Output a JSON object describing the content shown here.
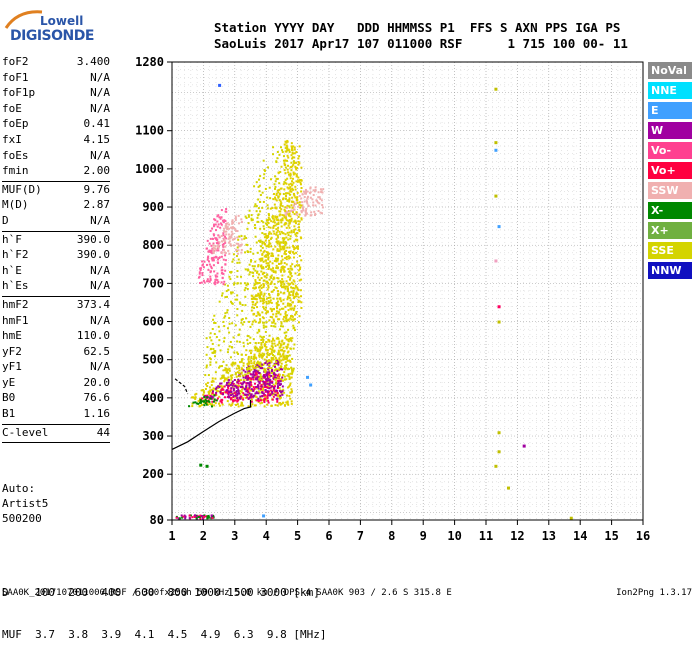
{
  "logo": {
    "brand": "Lowell",
    "product": "DIGISONDE"
  },
  "header": {
    "line1": "Station YYYY DAY   DDD HHMMSS P1  FFS S AXN PPS IGA PS",
    "line2": "SaoLuis 2017 Apr17 107 011000 RSF      1 715 100 00- 11"
  },
  "params": [
    {
      "name": "foF2",
      "value": "3.400"
    },
    {
      "name": "foF1",
      "value": "N/A"
    },
    {
      "name": "foF1p",
      "value": "N/A"
    },
    {
      "name": "foE",
      "value": "N/A"
    },
    {
      "name": "foEp",
      "value": "0.41"
    },
    {
      "name": "fxI",
      "value": "4.15"
    },
    {
      "name": "foEs",
      "value": "N/A"
    },
    {
      "name": "fmin",
      "value": "2.00"
    },
    {
      "sep": true
    },
    {
      "name": "MUF(D)",
      "value": "9.76"
    },
    {
      "name": "M(D)",
      "value": "2.87"
    },
    {
      "name": "D",
      "value": "N/A"
    },
    {
      "sep": true
    },
    {
      "name": "h`F",
      "value": "390.0"
    },
    {
      "name": "h`F2",
      "value": "390.0"
    },
    {
      "name": "h`E",
      "value": "N/A"
    },
    {
      "name": "h`Es",
      "value": "N/A"
    },
    {
      "sep": true
    },
    {
      "name": "hmF2",
      "value": "373.4"
    },
    {
      "name": "hmF1",
      "value": "N/A"
    },
    {
      "name": "hmE",
      "value": "110.0"
    },
    {
      "name": "yF2",
      "value": "62.5"
    },
    {
      "name": "yF1",
      "value": "N/A"
    },
    {
      "name": "yE",
      "value": "20.0"
    },
    {
      "name": "B0",
      "value": "76.6"
    },
    {
      "name": "B1",
      "value": "1.16"
    },
    {
      "sep": true
    },
    {
      "name": "C-level",
      "value": "44"
    },
    {
      "sep": true
    }
  ],
  "auto": {
    "line1": "Auto:",
    "line2": "Artist5",
    "line3": "500200"
  },
  "chart_data": {
    "type": "scatter",
    "xlim": [
      1,
      16
    ],
    "ylim": [
      80,
      1280
    ],
    "x_ticks": [
      "1",
      "2",
      "3",
      "4",
      "5",
      "6",
      "7",
      "8",
      "9",
      "10",
      "11",
      "12",
      "13",
      "14",
      "15",
      "16"
    ],
    "y_ticks": [
      {
        "v": 80,
        "label": "80"
      },
      {
        "v": 200,
        "label": "200"
      },
      {
        "v": 300,
        "label": "300"
      },
      {
        "v": 400,
        "label": "400"
      },
      {
        "v": 500,
        "label": "500"
      },
      {
        "v": 600,
        "label": "600"
      },
      {
        "v": 700,
        "label": "700"
      },
      {
        "v": 800,
        "label": "800"
      },
      {
        "v": 900,
        "label": "900"
      },
      {
        "v": 1000,
        "label": "1000"
      },
      {
        "v": 1100,
        "label": "1100"
      },
      {
        "v": 1280,
        "label": "1280"
      }
    ],
    "grid": "dotted",
    "profile_trace": [
      [
        1,
        265
      ],
      [
        1.5,
        285
      ],
      [
        2,
        312
      ],
      [
        2.5,
        338
      ],
      [
        3,
        360
      ],
      [
        3.3,
        372
      ],
      [
        3.5,
        376
      ],
      [
        3.5,
        395
      ]
    ],
    "short_trace": [
      [
        1.1,
        450
      ],
      [
        1.4,
        430
      ],
      [
        1.5,
        410
      ]
    ],
    "clusters": [
      {
        "color": "#e0d000",
        "x": [
          1.6,
          4.8
        ],
        "y": [
          380,
          560
        ]
      },
      {
        "color": "#ff0060",
        "x": [
          1.8,
          4.4
        ],
        "y": [
          390,
          470
        ]
      },
      {
        "color": "#a000a0",
        "x": [
          2,
          4.5
        ],
        "y": [
          400,
          500
        ]
      },
      {
        "color": "#d4d400",
        "x": [
          2,
          4.9
        ],
        "y": [
          450,
          1060
        ]
      },
      {
        "color": "#f0b0b0",
        "x": [
          4.5,
          5.8
        ],
        "y": [
          880,
          960
        ]
      },
      {
        "color": "#008800",
        "x": [
          1.5,
          2.4
        ],
        "y": [
          380,
          410
        ]
      },
      {
        "color": "#e0d000",
        "x": [
          3.5,
          5.1
        ],
        "y": [
          600,
          1080
        ]
      },
      {
        "color": "#ff60a0",
        "x": [
          1.8,
          2.7
        ],
        "y": [
          700,
          900
        ]
      },
      {
        "color": "#f0b0b0",
        "x": [
          2.2,
          3.2
        ],
        "y": [
          780,
          880
        ]
      }
    ],
    "sparse_points": [
      {
        "x": 2.5,
        "y": 1220,
        "color": "#3060ff"
      },
      {
        "x": 11.3,
        "y": 1210,
        "color": "#c0c000"
      },
      {
        "x": 11.3,
        "y": 1070,
        "color": "#c0c000"
      },
      {
        "x": 11.3,
        "y": 1050,
        "color": "#40a0ff"
      },
      {
        "x": 11.3,
        "y": 930,
        "color": "#c0c000"
      },
      {
        "x": 11.4,
        "y": 850,
        "color": "#40a0ff"
      },
      {
        "x": 11.3,
        "y": 760,
        "color": "#f0a0c0"
      },
      {
        "x": 11.4,
        "y": 640,
        "color": "#ff0060"
      },
      {
        "x": 11.4,
        "y": 600,
        "color": "#c0c000"
      },
      {
        "x": 11.4,
        "y": 310,
        "color": "#c0c000"
      },
      {
        "x": 11.4,
        "y": 260,
        "color": "#c0c000"
      },
      {
        "x": 11.3,
        "y": 222,
        "color": "#c0c000"
      },
      {
        "x": 11.7,
        "y": 165,
        "color": "#c0c000"
      },
      {
        "x": 12.2,
        "y": 275,
        "color": "#a000a0"
      },
      {
        "x": 13.7,
        "y": 86,
        "color": "#c0c000"
      },
      {
        "x": 5.3,
        "y": 455,
        "color": "#40a0ff"
      },
      {
        "x": 5.4,
        "y": 435,
        "color": "#40a0ff"
      },
      {
        "x": 3.9,
        "y": 92,
        "color": "#40a0ff"
      },
      {
        "x": 1.9,
        "y": 225,
        "color": "#008800"
      },
      {
        "x": 2.1,
        "y": 222,
        "color": "#008800"
      }
    ],
    "low_band": {
      "x": [
        1.1,
        2.3
      ],
      "y": [
        86,
        95
      ],
      "colors": [
        "#a000a0",
        "#008800",
        "#ff0060"
      ]
    }
  },
  "legend": [
    {
      "label": "NoVal",
      "color": "#8a8a8a"
    },
    {
      "label": "NNE",
      "color": "#00e0ff"
    },
    {
      "label": "E",
      "color": "#40a0ff"
    },
    {
      "label": "W",
      "color": "#a000a0"
    },
    {
      "label": "Vo-",
      "color": "#ff4090"
    },
    {
      "label": "Vo+",
      "color": "#ff0040"
    },
    {
      "label": "SSW",
      "color": "#f0b0b0"
    },
    {
      "label": "X-",
      "color": "#008800"
    },
    {
      "label": "X+",
      "color": "#70b040"
    },
    {
      "label": "SSE",
      "color": "#d4d400"
    },
    {
      "label": "NNW",
      "color": "#1010c0"
    }
  ],
  "muf_table": {
    "row1": "D    100  200  400  600  800 1000 1500 3000 [km]",
    "row2": "MUF  3.7  3.8  3.9  4.1  4.5  4.9  6.3  9.8 [MHz]"
  },
  "footer": {
    "text": "SAA0K_2017107011000.RSF / 300fx256h 50 kHz 5.0 km / DPS-4 SAA0K 903 / 2.6 S 315.8 E",
    "version": "Ion2Png 1.3.17"
  }
}
